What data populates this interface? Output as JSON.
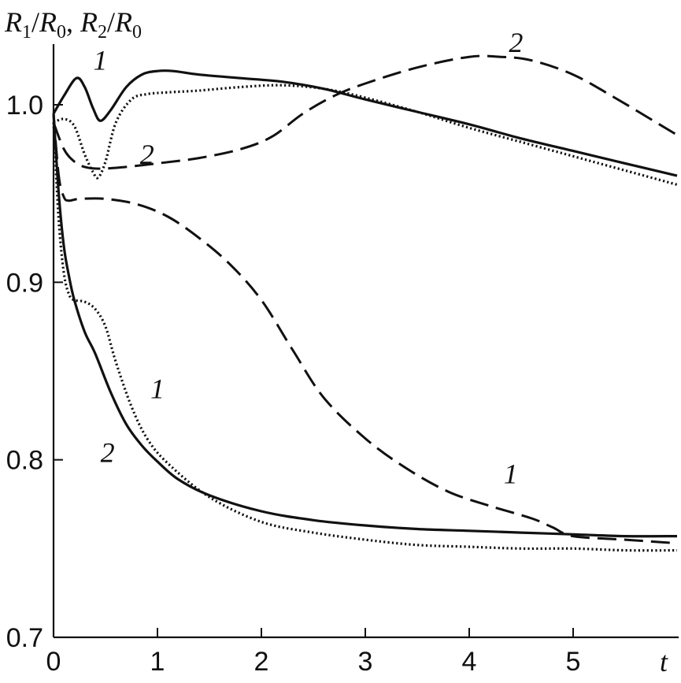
{
  "chart_data": {
    "type": "line",
    "ylabel_parts": [
      "R",
      "1",
      "/",
      "R",
      "0",
      ", ",
      "R",
      "2",
      "/",
      "R",
      "0"
    ],
    "xlabel": "t",
    "xlim": [
      0,
      6
    ],
    "ylim": [
      0.7,
      1.04
    ],
    "x_ticks": [
      0,
      1,
      2,
      3,
      4,
      5
    ],
    "x_tick_labels": [
      "0",
      "1",
      "2",
      "3",
      "4",
      "5"
    ],
    "y_ticks": [
      0.7,
      0.8,
      0.9,
      1.0
    ],
    "y_tick_labels": [
      "0.7",
      "0.8",
      "0.9",
      "1.0"
    ],
    "grid": false,
    "series": [
      {
        "style": "solid",
        "x": [
          0,
          0.1,
          0.22,
          0.3,
          0.38,
          0.45,
          0.55,
          0.7,
          0.85,
          1.0,
          1.15,
          1.4,
          1.8,
          2.2,
          2.6,
          3.0,
          3.5,
          4.0,
          4.5,
          5.0,
          5.5,
          6.0
        ],
        "y": [
          0.995,
          1.005,
          1.015,
          1.01,
          0.998,
          0.991,
          0.997,
          1.01,
          1.017,
          1.019,
          1.019,
          1.017,
          1.015,
          1.013,
          1.009,
          1.003,
          0.996,
          0.989,
          0.981,
          0.974,
          0.967,
          0.96
        ]
      },
      {
        "style": "dotted",
        "x": [
          0,
          0.1,
          0.2,
          0.3,
          0.38,
          0.43,
          0.5,
          0.6,
          0.75,
          0.9,
          1.1,
          1.4,
          1.8,
          2.2,
          2.6,
          3.0,
          3.5,
          4.0,
          4.5,
          5.0,
          5.5,
          6.0
        ],
        "y": [
          0.99,
          0.992,
          0.988,
          0.972,
          0.962,
          0.959,
          0.968,
          0.99,
          1.003,
          1.006,
          1.007,
          1.008,
          1.01,
          1.011,
          1.009,
          1.004,
          0.996,
          0.987,
          0.979,
          0.971,
          0.963,
          0.955
        ]
      },
      {
        "style": "dashed",
        "x": [
          0,
          0.1,
          0.2,
          0.3,
          0.45,
          0.7,
          1.0,
          1.4,
          1.8,
          2.1,
          2.4,
          2.7,
          3.0,
          3.5,
          4.0,
          4.3,
          4.6,
          5.0,
          5.4,
          5.8,
          6.0
        ],
        "y": [
          0.99,
          0.975,
          0.968,
          0.965,
          0.964,
          0.965,
          0.967,
          0.97,
          0.975,
          0.982,
          0.995,
          1.005,
          1.012,
          1.021,
          1.027,
          1.027,
          1.025,
          1.017,
          1.004,
          0.99,
          0.983
        ]
      },
      {
        "style": "dashed",
        "x": [
          0,
          0.05,
          0.1,
          0.15,
          0.25,
          0.5,
          0.8,
          1.1,
          1.4,
          1.7,
          2.0,
          2.3,
          2.6,
          3.0,
          3.4,
          3.8,
          4.2,
          4.6,
          4.8,
          5.0,
          5.5,
          6.0
        ],
        "y": [
          0.995,
          0.96,
          0.948,
          0.946,
          0.947,
          0.947,
          0.944,
          0.937,
          0.925,
          0.91,
          0.89,
          0.862,
          0.835,
          0.812,
          0.795,
          0.782,
          0.774,
          0.767,
          0.762,
          0.757,
          0.755,
          0.753
        ]
      },
      {
        "style": "solid",
        "x": [
          0,
          0.05,
          0.1,
          0.15,
          0.2,
          0.3,
          0.4,
          0.55,
          0.7,
          0.85,
          1.0,
          1.2,
          1.5,
          2.0,
          2.5,
          3.0,
          3.5,
          4.0,
          4.5,
          5.0,
          5.5,
          6.0
        ],
        "y": [
          0.995,
          0.95,
          0.92,
          0.903,
          0.89,
          0.872,
          0.86,
          0.838,
          0.82,
          0.808,
          0.799,
          0.789,
          0.78,
          0.771,
          0.766,
          0.763,
          0.761,
          0.76,
          0.759,
          0.758,
          0.757,
          0.757
        ]
      },
      {
        "style": "dotted",
        "x": [
          0,
          0.05,
          0.1,
          0.15,
          0.2,
          0.3,
          0.4,
          0.5,
          0.6,
          0.75,
          0.9,
          1.1,
          1.5,
          2.0,
          2.5,
          3.0,
          3.5,
          4.0,
          4.5,
          5.0,
          5.5,
          6.0
        ],
        "y": [
          0.99,
          0.935,
          0.905,
          0.893,
          0.89,
          0.889,
          0.885,
          0.875,
          0.855,
          0.83,
          0.812,
          0.798,
          0.779,
          0.765,
          0.759,
          0.755,
          0.752,
          0.751,
          0.75,
          0.75,
          0.749,
          0.749
        ]
      }
    ],
    "annotations": [
      {
        "text": "1",
        "x": 0.45,
        "y": 1.025
      },
      {
        "text": "2",
        "x": 0.9,
        "y": 0.972
      },
      {
        "text": "2",
        "x": 4.45,
        "y": 1.035
      },
      {
        "text": "1",
        "x": 1.0,
        "y": 0.84
      },
      {
        "text": "2",
        "x": 0.52,
        "y": 0.804
      },
      {
        "text": "1",
        "x": 4.4,
        "y": 0.792
      }
    ]
  }
}
